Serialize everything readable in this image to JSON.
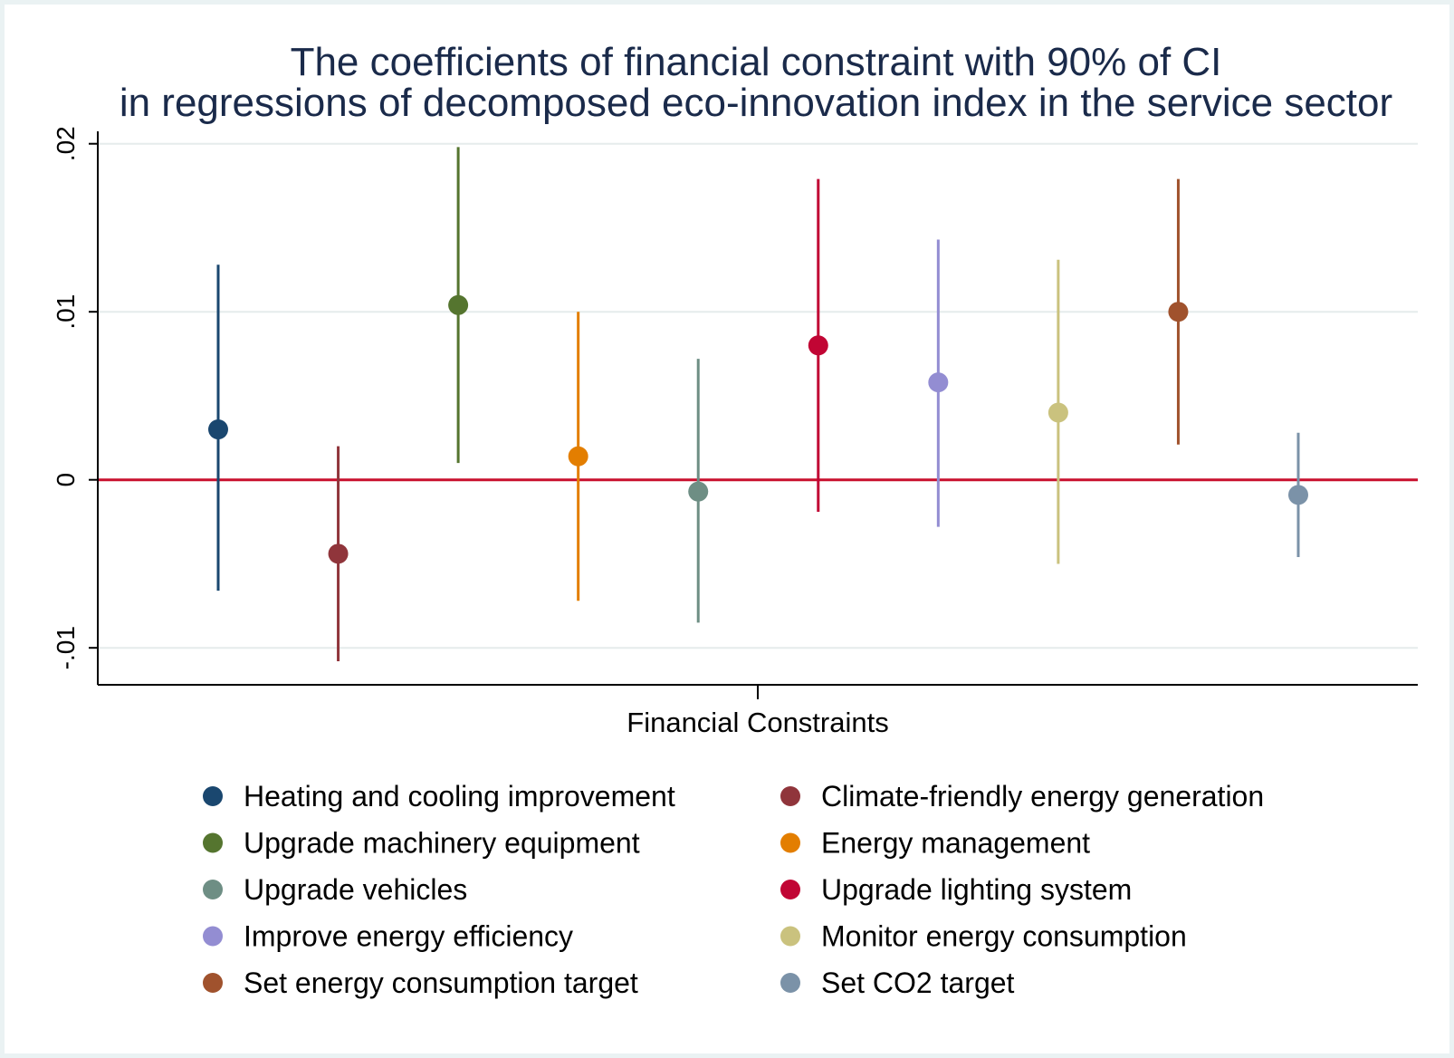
{
  "chart_data": {
    "type": "scatter",
    "title": "The coefficients of financial constraint with 90% of CI",
    "subtitle": "in regressions of decomposed eco-innovation index in the service sector",
    "xlabel": "Financial Constraints",
    "ylabel": "",
    "ylim": [
      -0.0122,
      0.0202
    ],
    "yticks": [
      {
        "value": 0.02,
        "label": ".02"
      },
      {
        "value": 0.01,
        "label": ".01"
      },
      {
        "value": 0,
        "label": "0"
      },
      {
        "value": -0.01,
        "label": "-.01"
      }
    ],
    "grid": true,
    "legend_position": "bottom",
    "reference_line": {
      "value": 0,
      "color": "#c8102e"
    },
    "series": [
      {
        "name": "Heating and cooling improvement",
        "color": "#1a476f",
        "estimate": 0.003,
        "ci_low": -0.0066,
        "ci_high": 0.0128
      },
      {
        "name": "Climate-friendly energy generation",
        "color": "#90353b",
        "estimate": -0.0044,
        "ci_low": -0.0108,
        "ci_high": 0.002
      },
      {
        "name": "Upgrade machinery equipment",
        "color": "#55752f",
        "estimate": 0.0104,
        "ci_low": 0.001,
        "ci_high": 0.0198
      },
      {
        "name": "Energy management",
        "color": "#e37e00",
        "estimate": 0.0014,
        "ci_low": -0.0072,
        "ci_high": 0.01
      },
      {
        "name": "Upgrade vehicles",
        "color": "#6e8e84",
        "estimate": -0.0007,
        "ci_low": -0.0085,
        "ci_high": 0.0072
      },
      {
        "name": "Upgrade lighting system",
        "color": "#c10534",
        "estimate": 0.008,
        "ci_low": -0.0019,
        "ci_high": 0.0179
      },
      {
        "name": "Improve energy efficiency",
        "color": "#938dd2",
        "estimate": 0.0058,
        "ci_low": -0.0028,
        "ci_high": 0.0143
      },
      {
        "name": "Monitor energy consumption",
        "color": "#cac27e",
        "estimate": 0.004,
        "ci_low": -0.005,
        "ci_high": 0.0131
      },
      {
        "name": "Set energy consumption target",
        "color": "#a0522d",
        "estimate": 0.01,
        "ci_low": 0.0021,
        "ci_high": 0.0179
      },
      {
        "name": "Set CO2 target",
        "color": "#7b92a8",
        "estimate": -0.0009,
        "ci_low": -0.0046,
        "ci_high": 0.0028
      }
    ]
  }
}
